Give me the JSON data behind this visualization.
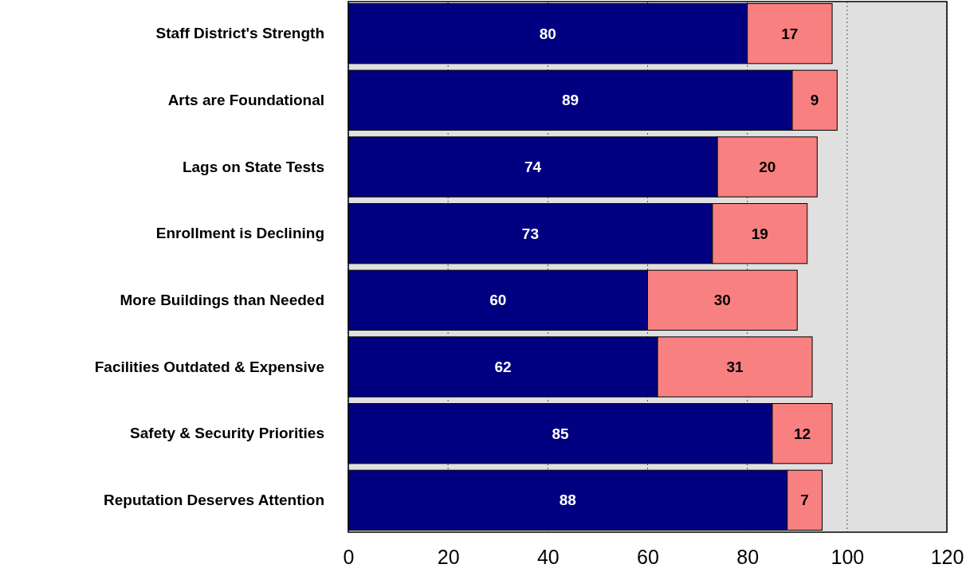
{
  "chart_data": {
    "type": "bar",
    "orientation": "horizontal",
    "stacked": true,
    "categories": [
      "Staff District's Strength",
      "Arts are Foundational",
      "Lags on State Tests",
      "Enrollment is Declining",
      "More Buildings than Needed",
      "Facilities Outdated & Expensive",
      "Safety & Security Priorities",
      "Reputation Deserves Attention"
    ],
    "series": [
      {
        "color": "#000080",
        "values": [
          80,
          89,
          74,
          73,
          60,
          62,
          85,
          88
        ]
      },
      {
        "color": "#f88080",
        "values": [
          17,
          9,
          20,
          19,
          30,
          31,
          12,
          7
        ]
      }
    ],
    "xlim": [
      0,
      120
    ],
    "xticks": [
      0,
      20,
      40,
      60,
      80,
      100,
      120
    ],
    "grid": "x",
    "data_labels": true
  }
}
